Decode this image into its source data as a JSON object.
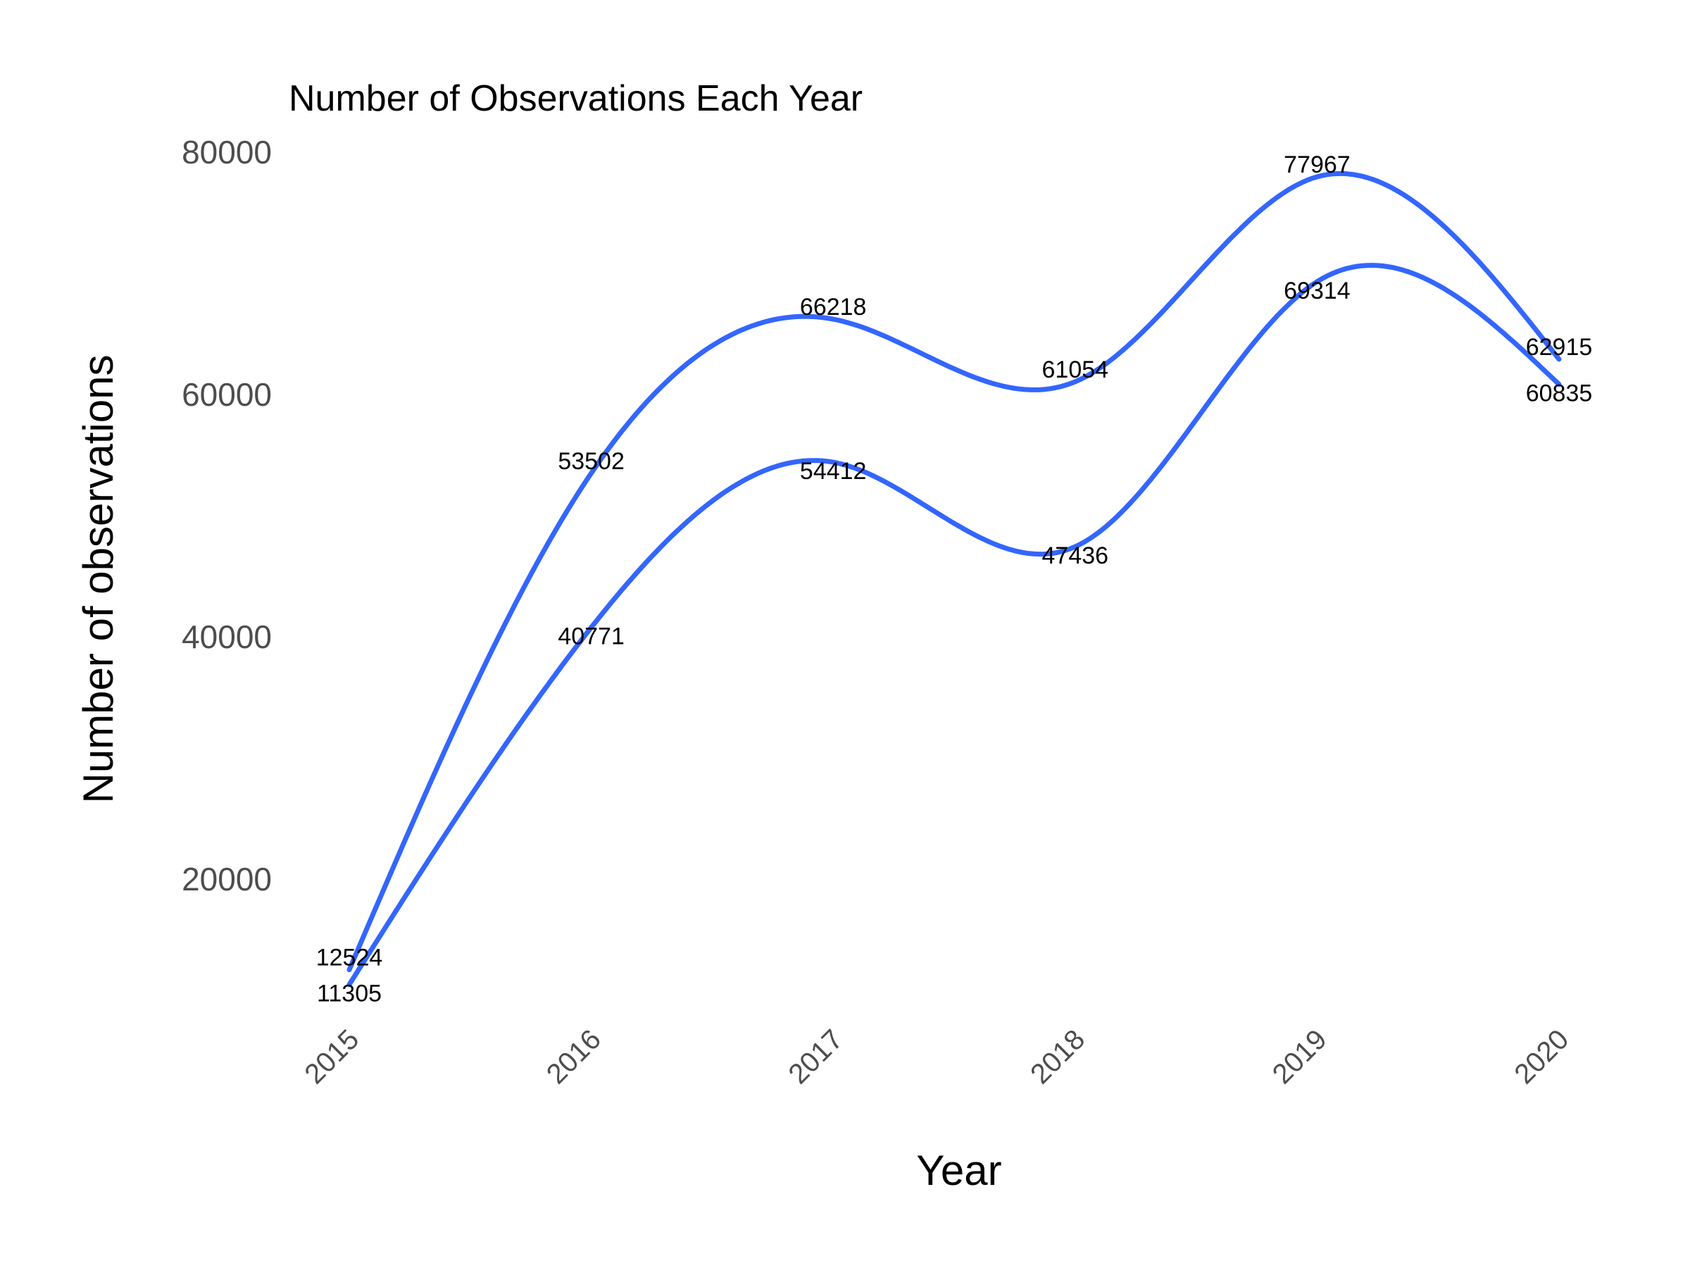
{
  "chart_data": {
    "type": "line",
    "title": "Number of Observations Each Year",
    "xlabel": "Year",
    "ylabel": "Number of observations",
    "x": [
      2015,
      2016,
      2017,
      2018,
      2019,
      2020
    ],
    "x_tick_labels": [
      "2015",
      "2016",
      "2017",
      "2018",
      "2019",
      "2020"
    ],
    "yticks": [
      20000,
      40000,
      60000,
      80000
    ],
    "y_tick_labels": [
      "20000",
      "40000",
      "60000",
      "80000"
    ],
    "ylim": [
      8000,
      80000
    ],
    "grid": false,
    "legend": "none",
    "smoothed": true,
    "series": [
      {
        "values": [
          12524,
          53502,
          66218,
          61054,
          77967,
          62915
        ],
        "labels": [
          "12524",
          "53502",
          "66218",
          "61054",
          "77967",
          "62915"
        ],
        "color": "#3366FF"
      },
      {
        "values": [
          11305,
          40771,
          54412,
          47436,
          69314,
          60835
        ],
        "labels": [
          "11305",
          "40771",
          "54412",
          "47436",
          "69314",
          "60835"
        ],
        "color": "#3366FF"
      }
    ]
  }
}
